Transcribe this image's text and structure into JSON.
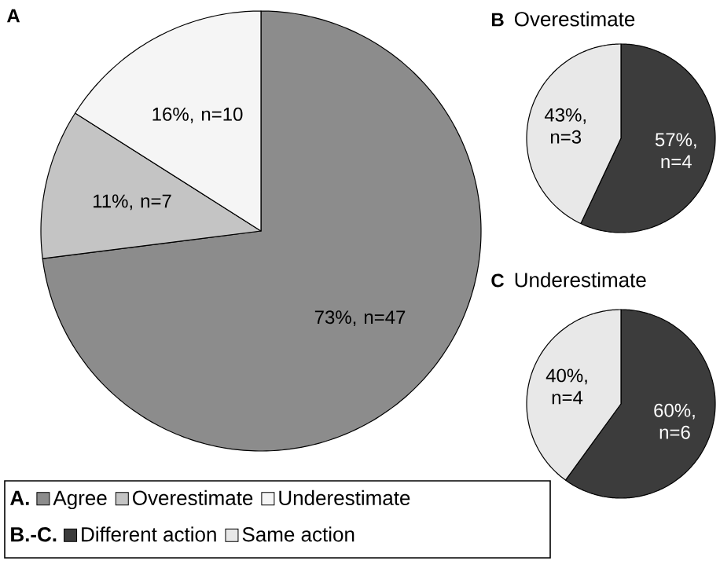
{
  "chart_data": [
    {
      "type": "pie",
      "title": "A",
      "categories": [
        "Agree",
        "Overestimate",
        "Underestimate"
      ],
      "values": [
        73,
        11,
        16
      ],
      "colors": [
        "#8c8c8c",
        "#c4c4c4",
        "#f5f5f5"
      ],
      "value_labels": [
        "73%, n=47",
        "11%, n=7",
        "16%, n=10"
      ],
      "legend": "bottom",
      "legend_title": "A."
    },
    {
      "type": "pie",
      "title": "B",
      "subtitle": "Overestimate",
      "categories": [
        "Different action",
        "Same action"
      ],
      "values": [
        57,
        43
      ],
      "colors": [
        "#3c3c3c",
        "#e8e8e8"
      ],
      "value_labels": [
        "57%, n=4",
        "43%, n=3"
      ],
      "legend": "bottom",
      "legend_title": "B.-C."
    },
    {
      "type": "pie",
      "title": "C",
      "subtitle": "Underestimate",
      "categories": [
        null,
        null
      ],
      "values": [
        60,
        40
      ],
      "colors": [
        "#3c3c3c",
        "#e8e8e8"
      ],
      "value_labels": [
        "60%, n=6",
        "40%, n=4"
      ]
    }
  ]
}
